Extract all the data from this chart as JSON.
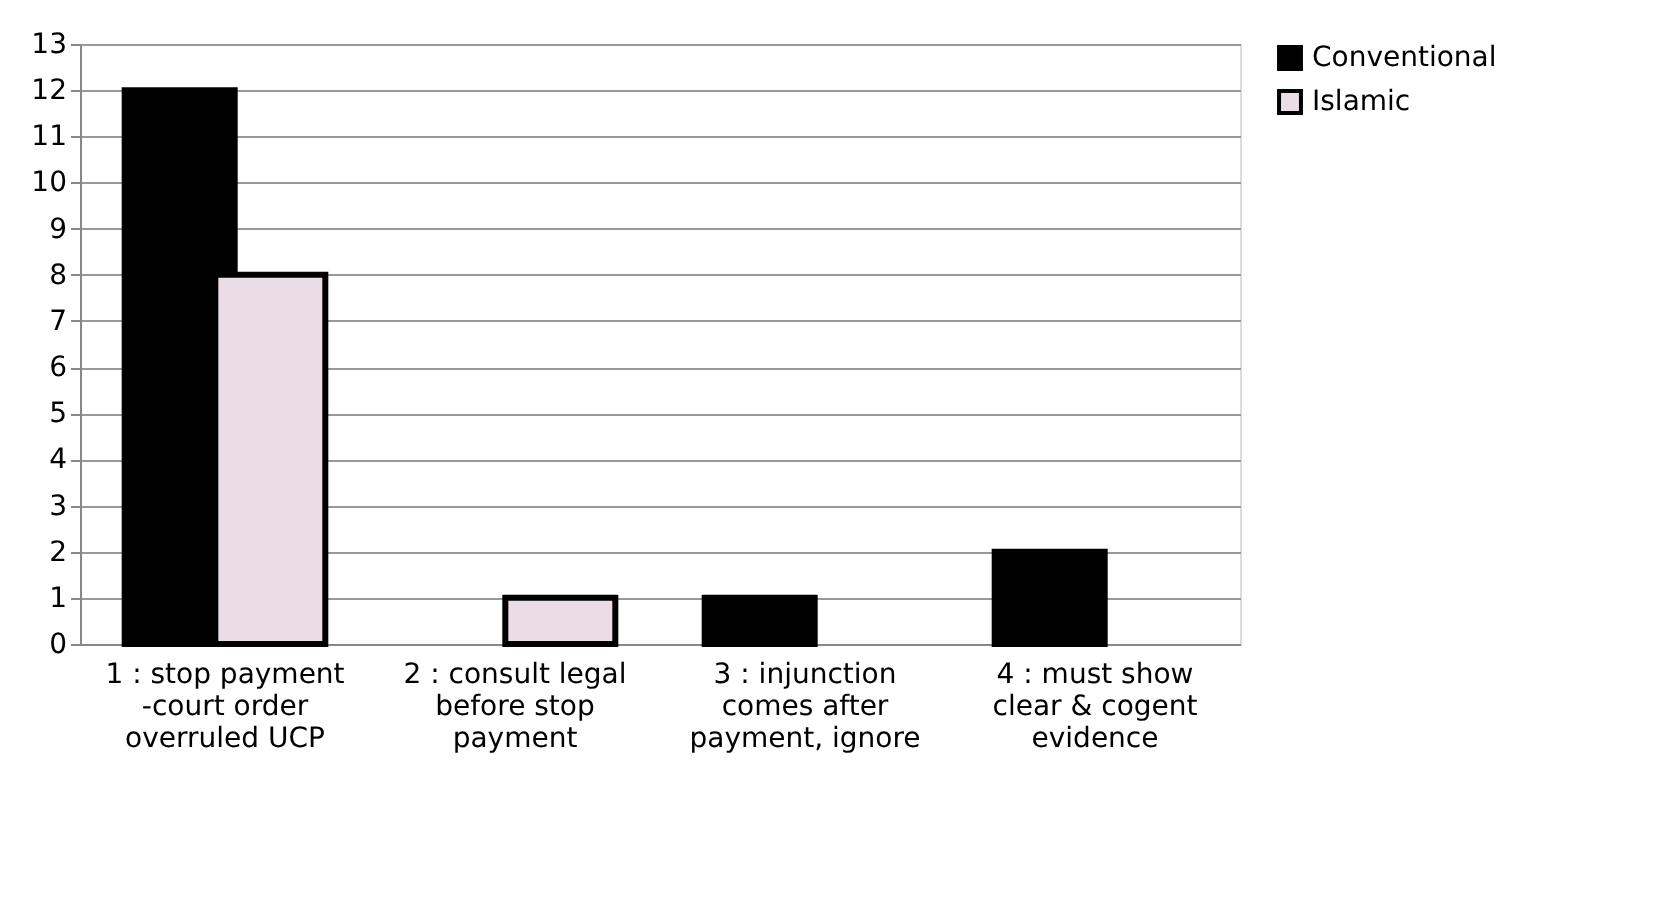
{
  "chart_data": {
    "type": "bar",
    "categories": [
      "1 : stop payment\n-court order\noverruled UCP",
      "2 : consult legal\nbefore stop\npayment",
      "3 : injunction\ncomes after\npayment, ignore",
      "4 : must show\nclear & cogent\nevidence"
    ],
    "series": [
      {
        "name": "Conventional",
        "color": "#000000",
        "values": [
          12,
          0,
          1,
          2
        ]
      },
      {
        "name": "Islamic",
        "color": "#eadde6",
        "values": [
          8,
          1,
          0,
          0
        ]
      }
    ],
    "ylim": [
      0,
      13
    ],
    "yticks": [
      0,
      1,
      2,
      3,
      4,
      5,
      6,
      7,
      8,
      9,
      10,
      11,
      12,
      13
    ],
    "grid": "y",
    "legend": "right"
  }
}
